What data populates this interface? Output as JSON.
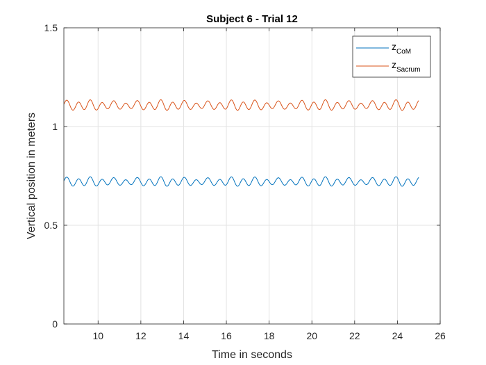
{
  "chart_data": {
    "type": "line",
    "title": "Subject 6 - Trial  12",
    "xlabel": "Time in seconds",
    "ylabel": "Vertical position in meters",
    "xlim": [
      8.4,
      26
    ],
    "ylim": [
      0,
      1.5
    ],
    "xticks": [
      10,
      12,
      14,
      16,
      18,
      20,
      22,
      24,
      26
    ],
    "xtick_labels": [
      "10",
      "12",
      "14",
      "16",
      "18",
      "20",
      "22",
      "24",
      "26"
    ],
    "yticks": [
      0,
      0.5,
      1,
      1.5
    ],
    "ytick_labels": [
      "0",
      "0.5",
      "1",
      "1.5"
    ],
    "grid": true,
    "legend_position": "top-right",
    "series": [
      {
        "name_base": "z",
        "name_sub": "CoM",
        "color": "#0072BD",
        "x_start": 8.4,
        "x_end": 25.0,
        "mean": 0.72,
        "amplitude": 0.018,
        "period": 0.55
      },
      {
        "name_base": "z",
        "name_sub": "Sacrum",
        "color": "#D95319",
        "x_start": 8.4,
        "x_end": 25.0,
        "mean": 1.107,
        "amplitude": 0.02,
        "period": 0.55
      }
    ]
  }
}
